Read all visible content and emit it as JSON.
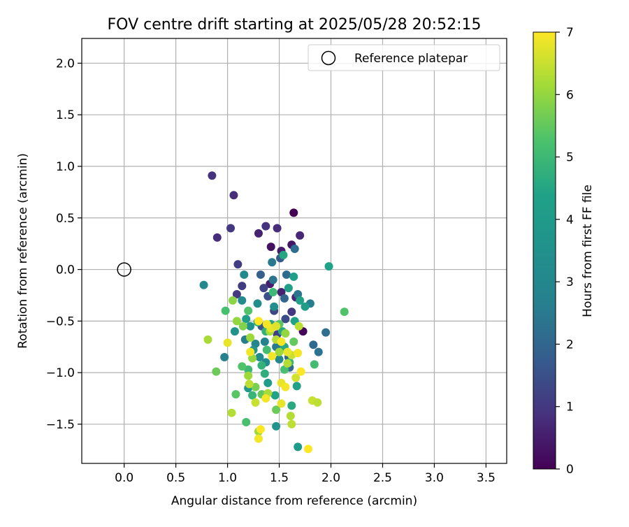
{
  "chart_data": {
    "type": "scatter",
    "title": "FOV centre drift starting at 2025/05/28 20:52:15",
    "xlabel": "Angular distance from reference (arcmin)",
    "ylabel": "Rotation from reference (arcmin)",
    "xlim": [
      -0.41,
      3.7
    ],
    "ylim": [
      -1.88,
      2.24
    ],
    "xticks": [
      "0.0",
      "0.5",
      "1.0",
      "1.5",
      "2.0",
      "2.5",
      "3.0",
      "3.5"
    ],
    "yticks": [
      "−1.5",
      "−1.0",
      "−0.5",
      "0.0",
      "0.5",
      "1.0",
      "1.5",
      "2.0"
    ],
    "grid": true,
    "legend": {
      "placement": "top-right",
      "entries": [
        {
          "label": "Reference platepar",
          "marker": "open-circle"
        }
      ]
    },
    "reference_point": {
      "x": 0.0,
      "y": 0.0
    },
    "colorbar": {
      "label": "Hours from first FF file",
      "colormap": "viridis",
      "range": [
        0,
        7
      ],
      "ticks": [
        "0",
        "1",
        "2",
        "3",
        "4",
        "5",
        "6",
        "7"
      ]
    },
    "series": [
      {
        "points": [
          [
            1.64,
            0.55,
            0.0
          ],
          [
            1.73,
            -0.6,
            0.1
          ],
          [
            1.42,
            0.22,
            0.3
          ],
          [
            1.62,
            0.24,
            0.4
          ],
          [
            1.52,
            0.18,
            0.5
          ],
          [
            1.3,
            0.35,
            0.6
          ],
          [
            1.7,
            0.33,
            0.7
          ],
          [
            1.48,
            0.4,
            0.8
          ],
          [
            1.37,
            0.42,
            0.9
          ],
          [
            1.06,
            0.72,
            0.8
          ],
          [
            0.85,
            0.91,
            0.9
          ],
          [
            1.03,
            0.4,
            1.0
          ],
          [
            0.9,
            0.31,
            0.8
          ],
          [
            1.1,
            0.05,
            1.1
          ],
          [
            1.41,
            -0.14,
            0.5
          ],
          [
            1.52,
            -0.22,
            0.6
          ],
          [
            1.66,
            -0.27,
            0.7
          ],
          [
            1.35,
            -0.18,
            1.2
          ],
          [
            1.14,
            -0.16,
            1.1
          ],
          [
            1.09,
            -0.24,
            1.0
          ],
          [
            1.39,
            -0.26,
            1.5
          ],
          [
            1.45,
            -0.4,
            1.3
          ],
          [
            1.62,
            -0.41,
            1.0
          ],
          [
            1.56,
            -0.48,
            1.4
          ],
          [
            1.48,
            -0.63,
            1.1
          ],
          [
            1.33,
            -0.55,
            1.6
          ],
          [
            1.51,
            0.11,
            1.7
          ],
          [
            1.32,
            -0.05,
            1.8
          ],
          [
            1.57,
            -0.05,
            2.1
          ],
          [
            1.43,
            0.07,
            2.5
          ],
          [
            1.65,
            0.2,
            2.2
          ],
          [
            1.44,
            -0.1,
            2.3
          ],
          [
            1.55,
            -0.28,
            2.0
          ],
          [
            1.68,
            -0.24,
            2.4
          ],
          [
            1.8,
            -0.33,
            2.6
          ],
          [
            1.95,
            -0.61,
            2.2
          ],
          [
            1.83,
            -0.73,
            2.1
          ],
          [
            1.88,
            -0.8,
            2.3
          ],
          [
            1.6,
            -0.95,
            2.1
          ],
          [
            1.59,
            -0.85,
            2.0
          ],
          [
            1.47,
            -0.75,
            2.5
          ],
          [
            1.36,
            -0.7,
            2.7
          ],
          [
            1.27,
            -0.72,
            2.9
          ],
          [
            1.17,
            -0.68,
            2.6
          ],
          [
            0.97,
            -0.85,
            2.8
          ],
          [
            0.77,
            -0.15,
            3.0
          ],
          [
            1.16,
            -0.05,
            3.1
          ],
          [
            1.14,
            -0.3,
            3.2
          ],
          [
            1.29,
            -0.33,
            3.3
          ],
          [
            1.45,
            -0.36,
            3.4
          ],
          [
            1.22,
            -0.55,
            3.5
          ],
          [
            1.07,
            -0.6,
            3.6
          ],
          [
            1.25,
            -0.78,
            3.7
          ],
          [
            1.37,
            -0.9,
            3.3
          ],
          [
            1.5,
            -0.87,
            3.0
          ],
          [
            1.31,
            -0.85,
            3.2
          ],
          [
            1.47,
            -1.52,
            3.6
          ],
          [
            1.68,
            -1.72,
            4.0
          ],
          [
            1.2,
            -1.15,
            3.9
          ],
          [
            1.39,
            -1.1,
            4.1
          ],
          [
            1.64,
            -0.07,
            4.2
          ],
          [
            1.54,
            0.14,
            4.5
          ],
          [
            1.98,
            0.03,
            4.4
          ],
          [
            1.59,
            -0.18,
            4.2
          ],
          [
            1.7,
            -0.3,
            4.3
          ],
          [
            1.75,
            -0.36,
            4.1
          ],
          [
            1.65,
            -0.5,
            4.4
          ],
          [
            1.53,
            -0.6,
            4.6
          ],
          [
            1.42,
            -0.53,
            4.5
          ],
          [
            1.29,
            -0.51,
            4.7
          ],
          [
            1.18,
            -0.48,
            4.2
          ],
          [
            1.37,
            -0.6,
            4.8
          ],
          [
            1.55,
            -0.75,
            4.6
          ],
          [
            1.6,
            -0.9,
            4.9
          ],
          [
            1.46,
            -1.22,
            4.4
          ],
          [
            1.67,
            -1.13,
            4.3
          ],
          [
            1.62,
            -1.32,
            4.6
          ],
          [
            1.33,
            -0.93,
            4.8
          ],
          [
            1.36,
            -1.01,
            4.7
          ],
          [
            1.2,
            -0.97,
            5.0
          ],
          [
            1.24,
            -1.22,
            4.9
          ],
          [
            0.98,
            -0.4,
            5.2
          ],
          [
            1.2,
            -0.4,
            5.3
          ],
          [
            1.38,
            -0.78,
            5.1
          ],
          [
            1.44,
            -0.22,
            5.0
          ],
          [
            1.5,
            -0.53,
            5.4
          ],
          [
            1.64,
            -0.7,
            5.5
          ],
          [
            1.55,
            -0.97,
            5.2
          ],
          [
            1.14,
            -0.94,
            5.3
          ],
          [
            1.08,
            -1.21,
            5.4
          ],
          [
            1.18,
            -1.48,
            5.2
          ],
          [
            0.89,
            -0.99,
            5.6
          ],
          [
            2.13,
            -0.41,
            5.3
          ],
          [
            1.84,
            -0.92,
            5.1
          ],
          [
            1.47,
            -1.36,
            5.6
          ],
          [
            1.33,
            -1.21,
            5.5
          ],
          [
            1.27,
            -1.14,
            5.7
          ],
          [
            1.15,
            -0.55,
            5.8
          ],
          [
            1.09,
            -0.5,
            6.0
          ],
          [
            1.05,
            -0.3,
            5.9
          ],
          [
            1.22,
            -0.66,
            6.1
          ],
          [
            1.24,
            -0.86,
            6.0
          ],
          [
            1.41,
            -0.6,
            6.2
          ],
          [
            1.56,
            -0.62,
            6.0
          ],
          [
            1.47,
            -0.68,
            6.3
          ],
          [
            1.5,
            -0.8,
            6.1
          ],
          [
            1.58,
            -0.91,
            6.3
          ],
          [
            1.62,
            -0.83,
            6.5
          ],
          [
            1.69,
            -0.55,
            6.4
          ],
          [
            0.81,
            -0.68,
            6.2
          ],
          [
            1.04,
            -1.39,
            6.3
          ],
          [
            1.2,
            -1.03,
            6.1
          ],
          [
            1.21,
            -1.11,
            6.4
          ],
          [
            1.27,
            -1.29,
            6.5
          ],
          [
            1.39,
            -1.2,
            6.2
          ],
          [
            1.61,
            -1.42,
            6.3
          ],
          [
            1.62,
            -1.5,
            6.4
          ],
          [
            1.3,
            -1.57,
            6.1
          ],
          [
            1.82,
            -1.27,
            6.5
          ],
          [
            1.87,
            -1.29,
            6.4
          ],
          [
            1.66,
            -1.05,
            6.6
          ],
          [
            1.52,
            -1.1,
            6.8
          ],
          [
            1.56,
            -1.14,
            6.9
          ],
          [
            1.43,
            -0.84,
            6.9
          ],
          [
            1.42,
            -0.57,
            6.8
          ],
          [
            1.47,
            -0.55,
            6.7
          ],
          [
            1.38,
            -0.53,
            6.9
          ],
          [
            1.3,
            -0.5,
            7.0
          ],
          [
            1.52,
            -0.7,
            6.9
          ],
          [
            1.71,
            -0.99,
            7.0
          ],
          [
            1.68,
            -0.81,
            6.9
          ],
          [
            1.58,
            -0.8,
            6.8
          ],
          [
            1.37,
            -1.25,
            6.9
          ],
          [
            1.52,
            -1.3,
            6.8
          ],
          [
            1.32,
            -1.55,
            7.0
          ],
          [
            1.3,
            -1.64,
            6.9
          ],
          [
            1.78,
            -1.74,
            7.0
          ],
          [
            1.0,
            -0.71,
            6.8
          ],
          [
            1.22,
            -0.8,
            6.9
          ]
        ]
      }
    ]
  }
}
